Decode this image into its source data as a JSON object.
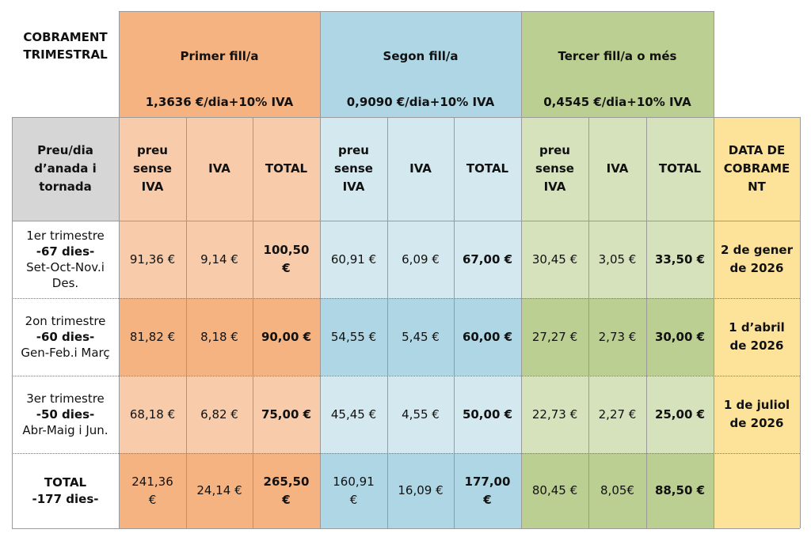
{
  "title": "COBRAMENT\nTRIMESTRAL",
  "groups": [
    {
      "name": "Primer fill/a",
      "rate": "1,3636 €/dia+10% IVA"
    },
    {
      "name": "Segon fill/a",
      "rate": "0,9090 €/dia+10% IVA"
    },
    {
      "name": "Tercer fill/a o més",
      "rate": "0,4545 €/dia+10% IVA"
    }
  ],
  "row_header": "Preu/dia\nd’anada i\ntornada",
  "col_headers": {
    "net": "preu\nsense\nIVA",
    "iva": "IVA",
    "total": "TOTAL"
  },
  "date_header": "DATA DE\nCOBRAME\nNT",
  "rows": [
    {
      "line1": "1er trimestre",
      "line2": "-67 dies-",
      "line3": "Set-Oct-Nov.i\nDes.",
      "g1": [
        "91,36 €",
        "9,14 €",
        "100,50\n€"
      ],
      "g2": [
        "60,91 €",
        "6,09 €",
        "67,00 €"
      ],
      "g3": [
        "30,45 €",
        "3,05 €",
        "33,50 €"
      ],
      "date": "2 de gener\nde 2026"
    },
    {
      "line1": "2on trimestre",
      "line2": "-60 dies-",
      "line3": "Gen-Feb.i Març",
      "g1": [
        "81,82 €",
        "8,18 €",
        "90,00 €"
      ],
      "g2": [
        "54,55 €",
        "5,45 €",
        "60,00 €"
      ],
      "g3": [
        "27,27 €",
        "2,73 €",
        "30,00 €"
      ],
      "date": "1 d’abril\nde 2026"
    },
    {
      "line1": "3er trimestre",
      "line2": "-50 dies-",
      "line3": "Abr-Maig i Jun.",
      "g1": [
        "68,18 €",
        "6,82 €",
        "75,00 €"
      ],
      "g2": [
        "45,45 €",
        "4,55 €",
        "50,00 €"
      ],
      "g3": [
        "22,73 €",
        "2,27 €",
        "25,00 €"
      ],
      "date": "1 de juliol\nde 2026"
    }
  ],
  "total_row": {
    "label": "TOTAL\n-177 dies-",
    "g1": [
      "241,36\n€",
      "24,14 €",
      "265,50\n€"
    ],
    "g2": [
      "160,91\n€",
      "16,09 €",
      "177,00\n€"
    ],
    "g3": [
      "80,45 €",
      "8,05€",
      "88,50 €"
    ],
    "date": ""
  },
  "colors": {
    "orange_dark": "#f5b382",
    "orange_light": "#f8ccaa",
    "blue_dark": "#aed6e4",
    "blue_light": "#d3e8ef",
    "green_dark": "#bccf92",
    "green_light": "#d6e2bc",
    "yellow": "#fde39a",
    "gray": "#d6d6d6"
  }
}
